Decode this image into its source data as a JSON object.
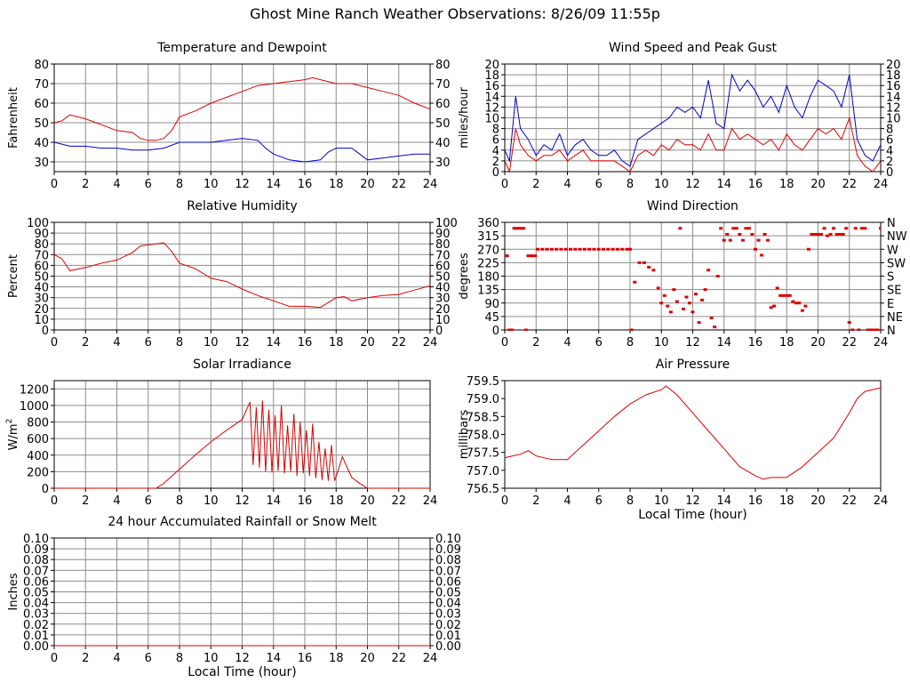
{
  "page_title": "Ghost Mine Ranch Weather Observations: 8/26/09 11:55p",
  "colors": {
    "red": "#dd0000",
    "blue": "#0000cc",
    "grid": "#8c8c8c",
    "axis": "#000000"
  },
  "chart_data": [
    {
      "id": "temp",
      "type": "line",
      "title": "Temperature and Dewpoint",
      "ylabel": "Fahrenheit",
      "xlabel": "",
      "xlim": [
        0,
        24
      ],
      "ylim": [
        25,
        80
      ],
      "xticks": [
        0,
        2,
        4,
        6,
        8,
        10,
        12,
        14,
        16,
        18,
        20,
        22,
        24
      ],
      "yticks": [
        30,
        40,
        50,
        60,
        70,
        80
      ],
      "grid": true,
      "right_axis": true,
      "series": [
        {
          "color": "#dd0000",
          "x": [
            0,
            0.5,
            1,
            2,
            3,
            4,
            5,
            5.5,
            6,
            6.5,
            7,
            7.5,
            8,
            9,
            10,
            11,
            12,
            13,
            14,
            15,
            16,
            16.5,
            17,
            18,
            19,
            20,
            21,
            22,
            23,
            24
          ],
          "y": [
            50,
            51,
            54,
            52,
            49,
            46,
            45,
            42,
            41,
            41,
            42,
            46,
            53,
            56,
            60,
            63,
            66,
            69,
            70,
            71,
            72,
            73,
            72,
            70,
            70,
            68,
            66,
            64,
            60,
            57
          ]
        },
        {
          "color": "#0000cc",
          "x": [
            0,
            1,
            2,
            3,
            4,
            5,
            6,
            7,
            8,
            9,
            10,
            11,
            12,
            13,
            13.5,
            14,
            15,
            16,
            17,
            17.5,
            18,
            19,
            19.5,
            20,
            21,
            22,
            23,
            24
          ],
          "y": [
            40,
            38,
            38,
            37,
            37,
            36,
            36,
            37,
            40,
            40,
            40,
            41,
            42,
            41,
            37,
            34,
            31,
            30,
            31,
            35,
            37,
            37,
            34,
            31,
            32,
            33,
            34,
            34
          ]
        }
      ]
    },
    {
      "id": "wind",
      "type": "line",
      "title": "Wind Speed and Peak Gust",
      "ylabel": "miles/hour",
      "xlabel": "",
      "xlim": [
        0,
        24
      ],
      "ylim": [
        0,
        20
      ],
      "xticks": [
        0,
        2,
        4,
        6,
        8,
        10,
        12,
        14,
        16,
        18,
        20,
        22,
        24
      ],
      "yticks": [
        0,
        2,
        4,
        6,
        8,
        10,
        12,
        14,
        16,
        18,
        20
      ],
      "grid": true,
      "right_axis": true,
      "series": [
        {
          "color": "#0000cc",
          "x": [
            0,
            0.3,
            0.7,
            1,
            1.5,
            2,
            2.5,
            3,
            3.5,
            4,
            4.5,
            5,
            5.5,
            6,
            6.5,
            7,
            7.5,
            8,
            8.5,
            9,
            9.5,
            10,
            10.5,
            11,
            11.5,
            12,
            12.5,
            13,
            13.5,
            14,
            14.5,
            15,
            15.5,
            16,
            16.5,
            17,
            17.5,
            18,
            18.5,
            19,
            19.5,
            20,
            20.5,
            21,
            21.5,
            22,
            22.5,
            23,
            23.5,
            24
          ],
          "y": [
            4,
            2,
            14,
            8,
            6,
            3,
            5,
            4,
            7,
            3,
            5,
            6,
            4,
            3,
            3,
            4,
            2,
            1,
            6,
            7,
            8,
            9,
            10,
            12,
            11,
            12,
            10,
            17,
            9,
            8,
            18,
            15,
            17,
            15,
            12,
            14,
            11,
            16,
            12,
            10,
            14,
            17,
            16,
            15,
            12,
            18,
            6,
            3,
            2,
            5
          ]
        },
        {
          "color": "#dd0000",
          "x": [
            0,
            0.3,
            0.7,
            1,
            1.5,
            2,
            2.5,
            3,
            3.5,
            4,
            4.5,
            5,
            5.5,
            6,
            6.5,
            7,
            7.5,
            8,
            8.5,
            9,
            9.5,
            10,
            10.5,
            11,
            11.5,
            12,
            12.5,
            13,
            13.5,
            14,
            14.5,
            15,
            15.5,
            16,
            16.5,
            17,
            17.5,
            18,
            18.5,
            19,
            19.5,
            20,
            20.5,
            21,
            21.5,
            22,
            22.5,
            23,
            23.5,
            24
          ],
          "y": [
            2,
            0,
            8,
            5,
            3,
            2,
            3,
            3,
            4,
            2,
            3,
            4,
            2,
            2,
            2,
            2,
            1,
            0,
            3,
            4,
            3,
            5,
            4,
            6,
            5,
            5,
            4,
            7,
            4,
            4,
            8,
            6,
            7,
            6,
            5,
            6,
            4,
            7,
            5,
            4,
            6,
            8,
            7,
            8,
            6,
            10,
            3,
            1,
            0,
            2
          ]
        }
      ]
    },
    {
      "id": "humidity",
      "type": "line",
      "title": "Relative Humidity",
      "ylabel": "Percent",
      "xlabel": "",
      "xlim": [
        0,
        24
      ],
      "ylim": [
        0,
        100
      ],
      "xticks": [
        0,
        2,
        4,
        6,
        8,
        10,
        12,
        14,
        16,
        18,
        20,
        22,
        24
      ],
      "yticks": [
        0,
        10,
        20,
        30,
        40,
        50,
        60,
        70,
        80,
        90,
        100
      ],
      "grid": true,
      "right_axis": true,
      "series": [
        {
          "color": "#dd0000",
          "x": [
            0,
            0.5,
            1,
            2,
            3,
            4,
            5,
            5.5,
            6,
            6.5,
            7,
            7.5,
            8,
            9,
            10,
            11,
            12,
            13,
            14,
            15,
            16,
            17,
            18,
            18.5,
            19,
            20,
            21,
            22,
            23,
            24
          ],
          "y": [
            70,
            66,
            55,
            58,
            62,
            65,
            72,
            78,
            79,
            80,
            81,
            73,
            62,
            57,
            48,
            45,
            38,
            32,
            27,
            22,
            22,
            21,
            30,
            31,
            27,
            30,
            32,
            33,
            37,
            41
          ]
        }
      ]
    },
    {
      "id": "winddir",
      "type": "scatter",
      "title": "Wind Direction",
      "ylabel": "degrees",
      "xlabel": "",
      "xlim": [
        0,
        24
      ],
      "ylim": [
        0,
        360
      ],
      "xticks": [
        0,
        2,
        4,
        6,
        8,
        10,
        12,
        14,
        16,
        18,
        20,
        22,
        24
      ],
      "yticks": [
        0,
        45,
        90,
        135,
        180,
        225,
        270,
        315,
        360
      ],
      "right_tick_labels": [
        "N",
        "NE",
        "E",
        "SE",
        "S",
        "SW",
        "W",
        "NW",
        "N"
      ],
      "grid": true,
      "series": [
        {
          "color": "#dd0000",
          "x": [
            0,
            0.15,
            0.3,
            0.45,
            0.6,
            0.75,
            0.9,
            1.05,
            1.2,
            1.35,
            1.5,
            1.65,
            1.8,
            1.95,
            2.1,
            2.4,
            2.7,
            3,
            3.3,
            3.6,
            3.9,
            4.2,
            4.5,
            4.8,
            5.1,
            5.4,
            5.7,
            6,
            6.3,
            6.6,
            6.9,
            7.2,
            7.5,
            7.8,
            8,
            8.1,
            8.3,
            8.6,
            8.9,
            9.2,
            9.5,
            9.8,
            10,
            10.2,
            10.4,
            10.6,
            10.8,
            11,
            11.2,
            11.4,
            11.6,
            11.8,
            12,
            12.2,
            12.4,
            12.6,
            12.8,
            13,
            13.2,
            13.4,
            13.6,
            13.8,
            14,
            14.2,
            14.4,
            14.6,
            14.8,
            15,
            15.2,
            15.4,
            15.6,
            15.8,
            16,
            16.2,
            16.4,
            16.6,
            16.8,
            17,
            17.2,
            17.4,
            17.6,
            17.8,
            18,
            18.2,
            18.4,
            18.6,
            18.8,
            19,
            19.2,
            19.4,
            19.6,
            19.8,
            20,
            20.2,
            20.4,
            20.6,
            20.8,
            21,
            21.2,
            21.4,
            21.6,
            21.8,
            22,
            22.2,
            22.4,
            22.6,
            22.8,
            23,
            23.2,
            23.4,
            23.6,
            23.8,
            24
          ],
          "y": [
            248,
            248,
            0,
            0,
            340,
            340,
            340,
            340,
            340,
            0,
            248,
            248,
            248,
            248,
            270,
            270,
            270,
            270,
            270,
            270,
            270,
            270,
            270,
            270,
            270,
            270,
            270,
            270,
            270,
            270,
            270,
            270,
            270,
            270,
            270,
            0,
            160,
            225,
            225,
            210,
            200,
            140,
            90,
            115,
            80,
            60,
            135,
            95,
            340,
            70,
            110,
            90,
            60,
            120,
            25,
            100,
            135,
            200,
            40,
            10,
            180,
            340,
            300,
            320,
            300,
            340,
            340,
            320,
            300,
            340,
            340,
            320,
            270,
            300,
            250,
            320,
            300,
            75,
            80,
            140,
            115,
            115,
            115,
            115,
            95,
            90,
            90,
            65,
            80,
            270,
            320,
            320,
            320,
            320,
            340,
            315,
            320,
            340,
            320,
            320,
            320,
            340,
            25,
            0,
            340,
            0,
            340,
            340,
            0,
            0,
            0,
            0,
            340
          ]
        }
      ]
    },
    {
      "id": "solar",
      "type": "line",
      "title": "Solar Irradiance",
      "ylabel": "W/m",
      "ylabel_sup": "2",
      "xlabel": "",
      "xlim": [
        0,
        24
      ],
      "ylim": [
        0,
        1300
      ],
      "xticks": [
        0,
        2,
        4,
        6,
        8,
        10,
        12,
        14,
        16,
        18,
        20,
        22,
        24
      ],
      "yticks": [
        0,
        200,
        400,
        600,
        800,
        1000,
        1200
      ],
      "grid": true,
      "series": [
        {
          "color": "#dd0000",
          "x": [
            0,
            6.5,
            7,
            8,
            9,
            10,
            11,
            12,
            12.5,
            12.7,
            12.9,
            13.1,
            13.3,
            13.5,
            13.7,
            13.9,
            14.1,
            14.3,
            14.5,
            14.7,
            14.9,
            15.1,
            15.3,
            15.5,
            15.7,
            15.9,
            16.1,
            16.3,
            16.5,
            16.7,
            16.9,
            17.1,
            17.3,
            17.5,
            17.7,
            17.9,
            18.1,
            18.4,
            18.7,
            19,
            19.5,
            20,
            24
          ],
          "y": [
            0,
            0,
            60,
            230,
            400,
            560,
            700,
            830,
            1040,
            280,
            980,
            250,
            1060,
            200,
            950,
            190,
            880,
            210,
            1000,
            180,
            760,
            200,
            900,
            150,
            800,
            180,
            700,
            150,
            780,
            120,
            560,
            100,
            480,
            90,
            520,
            90,
            200,
            380,
            250,
            130,
            60,
            0,
            0
          ]
        }
      ]
    },
    {
      "id": "pressure",
      "type": "line",
      "title": "Air Pressure",
      "ylabel": "millibars",
      "xlabel": "Local Time (hour)",
      "xlim": [
        0,
        24
      ],
      "ylim": [
        756.5,
        759.5
      ],
      "xticks": [
        0,
        2,
        4,
        6,
        8,
        10,
        12,
        14,
        16,
        18,
        20,
        22,
        24
      ],
      "yticks": [
        756.5,
        757.0,
        757.5,
        758.0,
        758.5,
        759.0,
        759.5
      ],
      "grid": false,
      "series": [
        {
          "color": "#dd0000",
          "x": [
            0,
            1,
            1.5,
            2,
            3,
            4,
            5,
            6,
            7,
            8,
            9,
            10,
            10.3,
            11,
            12,
            13,
            14,
            15,
            16,
            16.5,
            17,
            18,
            19,
            20,
            21,
            22,
            22.5,
            23,
            24
          ],
          "y": [
            757.35,
            757.45,
            757.55,
            757.4,
            757.3,
            757.3,
            757.7,
            758.1,
            758.5,
            758.85,
            759.1,
            759.25,
            759.35,
            759.1,
            758.6,
            758.1,
            757.6,
            757.1,
            756.85,
            756.75,
            756.8,
            756.8,
            757.1,
            757.5,
            757.9,
            758.6,
            759.0,
            759.2,
            759.3
          ]
        }
      ]
    },
    {
      "id": "rain",
      "type": "line",
      "title": "24 hour Accumulated Rainfall or Snow Melt",
      "ylabel": "Inches",
      "xlabel": "Local Time (hour)",
      "xlim": [
        0,
        24
      ],
      "ylim": [
        0,
        0.1
      ],
      "xticks": [
        0,
        2,
        4,
        6,
        8,
        10,
        12,
        14,
        16,
        18,
        20,
        22,
        24
      ],
      "yticks": [
        0.0,
        0.01,
        0.02,
        0.03,
        0.04,
        0.05,
        0.06,
        0.07,
        0.08,
        0.09,
        0.1
      ],
      "grid": true,
      "right_axis": true,
      "series": [
        {
          "color": "#dd0000",
          "x": [
            0,
            24
          ],
          "y": [
            0,
            0
          ]
        }
      ]
    }
  ]
}
